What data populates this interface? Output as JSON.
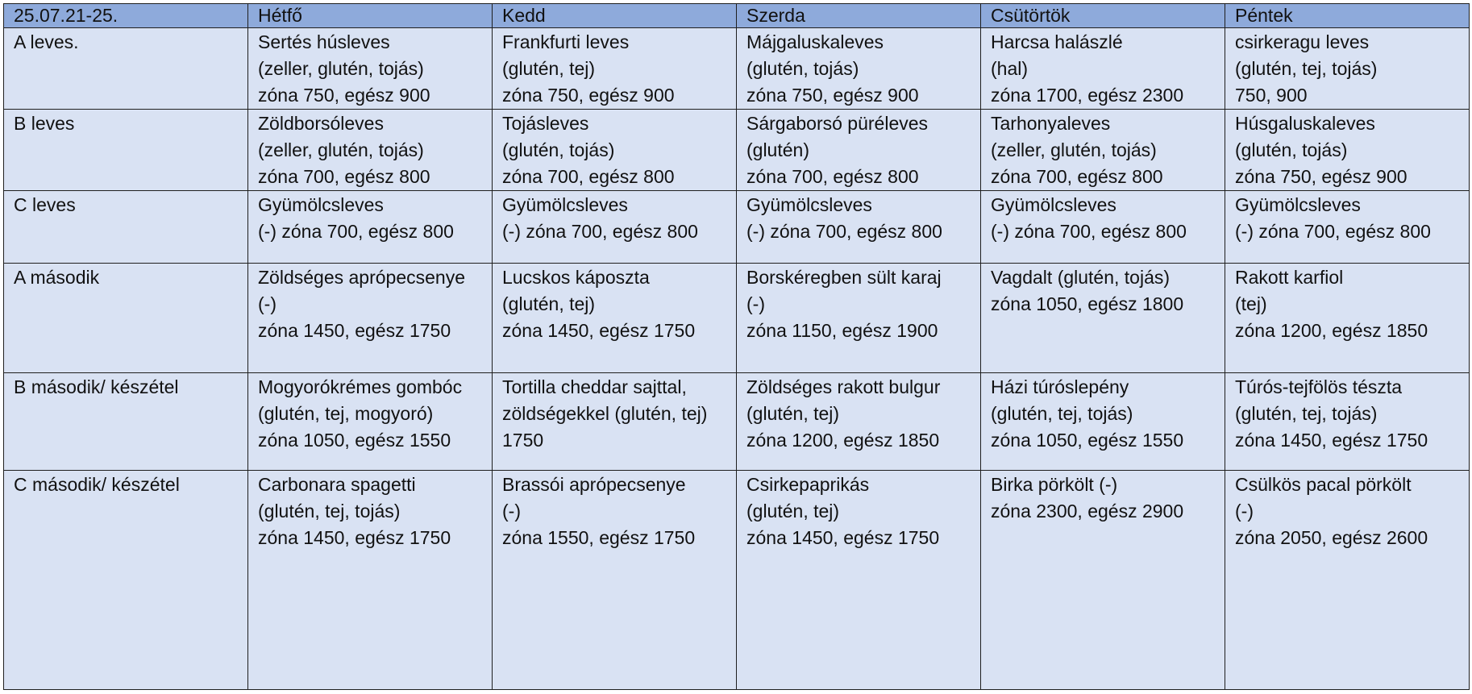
{
  "header": {
    "date_range": "25.07.21-25.",
    "days": [
      "Hétfő",
      "Kedd",
      "Szerda",
      "Csütörtök",
      "Péntek"
    ]
  },
  "rows": [
    {
      "label": "A leves.",
      "cells": [
        [
          "Sertés húsleves",
          "(zeller, glutén, tojás)",
          "zóna 750, egész 900"
        ],
        [
          "Frankfurti leves",
          "(glutén, tej)",
          "zóna 750, egész 900"
        ],
        [
          "Májgaluskaleves",
          "(glutén, tojás)",
          "zóna 750, egész 900"
        ],
        [
          "Harcsa halászlé",
          "(hal)",
          "zóna 1700, egész 2300"
        ],
        [
          "csirkeragu leves",
          "(glutén, tej, tojás)",
          "750, 900"
        ]
      ]
    },
    {
      "label": "B leves",
      "cells": [
        [
          "Zöldborsóleves",
          "(zeller, glutén, tojás)",
          "zóna 700, egész 800"
        ],
        [
          "Tojásleves",
          "(glutén, tojás)",
          "zóna 700, egész 800"
        ],
        [
          "Sárgaborsó püréleves",
          "(glutén)",
          "zóna 700, egész 800"
        ],
        [
          "Tarhonyaleves",
          "(zeller, glutén, tojás)",
          "zóna 700, egész 800"
        ],
        [
          "Húsgaluskaleves",
          "(glutén, tojás)",
          "zóna 750, egész 900"
        ]
      ]
    },
    {
      "label": "C leves",
      "cells": [
        [
          "Gyümölcsleves",
          "(-) zóna 700, egész 800"
        ],
        [
          "Gyümölcsleves",
          "(-) zóna 700, egész 800"
        ],
        [
          "Gyümölcsleves",
          "(-) zóna 700, egész 800"
        ],
        [
          "Gyümölcsleves",
          "(-) zóna 700, egész 800"
        ],
        [
          "Gyümölcsleves",
          "(-) zóna 700, egész 800"
        ]
      ]
    },
    {
      "label": "A második",
      "cells": [
        [
          "Zöldséges aprópecsenye",
          "(-)",
          "zóna 1450, egész 1750"
        ],
        [
          "Lucskos káposzta",
          "(glutén, tej)",
          "zóna 1450, egész 1750"
        ],
        [
          "Borskéregben sült karaj",
          "(-)",
          "zóna 1150, egész 1900"
        ],
        [
          "Vagdalt (glutén, tojás)",
          "zóna 1050, egész 1800"
        ],
        [
          "Rakott karfiol",
          "(tej)",
          "zóna 1200, egész 1850"
        ]
      ]
    },
    {
      "label": "B második/ készétel",
      "cells": [
        [
          "Mogyorókrémes gombóc",
          "(glutén, tej, mogyoró)",
          "zóna 1050, egész 1550"
        ],
        [
          "Tortilla cheddar sajttal,",
          "zöldségekkel (glutén, tej)",
          "1750"
        ],
        [
          "Zöldséges rakott bulgur",
          "(glutén, tej)",
          "zóna 1200, egész 1850"
        ],
        [
          "Házi túróslepény",
          "(glutén, tej, tojás)",
          "zóna 1050, egész 1550"
        ],
        [
          "Túrós-tejfölös tészta",
          "(glutén, tej, tojás)",
          "zóna 1450, egész 1750"
        ]
      ]
    },
    {
      "label": "C második/ készétel",
      "cells": [
        [
          "Carbonara spagetti",
          "(glutén, tej, tojás)",
          "zóna 1450, egész 1750"
        ],
        [
          "Brassói aprópecsenye",
          "(-)",
          "zóna 1550, egész 1750"
        ],
        [
          "Csirkepaprikás",
          "(glutén, tej)",
          "zóna 1450, egész 1750"
        ],
        [
          "Birka pörkölt (-)",
          "zóna 2300, egész 2900"
        ],
        [
          "Csülkös pacal pörkölt",
          "(-)",
          "zóna 2050, egész 2600"
        ]
      ]
    }
  ],
  "colors": {
    "header_background": "#8eaadb",
    "cell_background": "#d9e2f3",
    "border": "#1f1f1f"
  }
}
